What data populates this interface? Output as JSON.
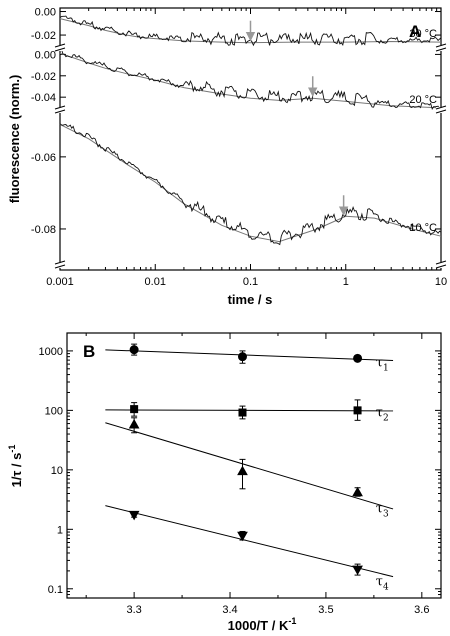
{
  "chart_data": [
    {
      "panel": "A",
      "type": "line",
      "xlabel": "time / s",
      "ylabel": "fluorescence (norm.)",
      "xscale": "log",
      "xlim": [
        0.001,
        10
      ],
      "x_ticks": [
        "0.001",
        "0.01",
        "0.1",
        "1",
        "10"
      ],
      "series": [
        {
          "name": "30 °C",
          "y_ticks": [
            "0.00",
            "-0.02"
          ],
          "ylim": [
            -0.031,
            0.003
          ],
          "points": [
            [
              0.001,
              -0.006
            ],
            [
              0.002,
              -0.012
            ],
            [
              0.003,
              -0.016
            ],
            [
              0.005,
              -0.02
            ],
            [
              0.007,
              -0.022
            ],
            [
              0.01,
              -0.023
            ],
            [
              0.02,
              -0.025
            ],
            [
              0.05,
              -0.026
            ],
            [
              0.1,
              -0.0265
            ],
            [
              0.3,
              -0.026
            ],
            [
              1,
              -0.026
            ],
            [
              3,
              -0.0255
            ],
            [
              10,
              -0.026
            ]
          ],
          "arrow_x": 0.1
        },
        {
          "name": "20 °C",
          "y_ticks": [
            "0.00",
            "-0.02",
            "-0.04"
          ],
          "ylim": [
            -0.052,
            0.006
          ],
          "points": [
            [
              0.001,
              0.001
            ],
            [
              0.002,
              -0.008
            ],
            [
              0.003,
              -0.013
            ],
            [
              0.005,
              -0.018
            ],
            [
              0.01,
              -0.024
            ],
            [
              0.02,
              -0.031
            ],
            [
              0.05,
              -0.037
            ],
            [
              0.1,
              -0.041
            ],
            [
              0.2,
              -0.043
            ],
            [
              0.45,
              -0.041
            ],
            [
              1,
              -0.044
            ],
            [
              3,
              -0.048
            ],
            [
              10,
              -0.05
            ]
          ],
          "arrow_x": 0.45
        },
        {
          "name": "10 °C",
          "y_ticks": [
            "-0.06",
            "-0.08"
          ],
          "ylim": [
            -0.09,
            -0.047
          ],
          "points": [
            [
              0.001,
              -0.051
            ],
            [
              0.002,
              -0.055
            ],
            [
              0.005,
              -0.062
            ],
            [
              0.01,
              -0.067
            ],
            [
              0.02,
              -0.073
            ],
            [
              0.05,
              -0.079
            ],
            [
              0.1,
              -0.082
            ],
            [
              0.2,
              -0.0835
            ],
            [
              0.5,
              -0.08
            ],
            [
              1,
              -0.0765
            ],
            [
              2,
              -0.077
            ],
            [
              5,
              -0.08
            ],
            [
              10,
              -0.082
            ]
          ],
          "arrow_x": 0.95
        }
      ],
      "labels": [
        "30 °C",
        "20 °C",
        "10 °C"
      ]
    },
    {
      "panel": "B",
      "type": "scatter",
      "xlabel": "1000/T / K⁻¹",
      "ylabel": "1/τ / s⁻¹",
      "yscale": "log",
      "xlim": [
        3.23,
        3.62
      ],
      "ylim": [
        0.07,
        2000
      ],
      "x_ticks": [
        "3.3",
        "3.4",
        "3.5",
        "3.6"
      ],
      "y_ticks": [
        "0.1",
        "1",
        "10",
        "100",
        "1000"
      ],
      "series": [
        {
          "name": "τ1",
          "marker": "circle",
          "x": [
            3.3,
            3.413,
            3.533
          ],
          "y": [
            1050,
            800,
            750
          ],
          "err_lo": [
            850,
            620,
            680
          ],
          "err_hi": [
            1300,
            1000,
            830
          ],
          "fit": [
            [
              3.27,
              1040
            ],
            [
              3.57,
              690
            ]
          ]
        },
        {
          "name": "τ2",
          "marker": "square",
          "x": [
            3.3,
            3.413,
            3.533
          ],
          "y": [
            105,
            92,
            100
          ],
          "err_lo": [
            80,
            72,
            68
          ],
          "err_hi": [
            135,
            118,
            150
          ],
          "fit": [
            [
              3.27,
              102
            ],
            [
              3.57,
              98
            ]
          ]
        },
        {
          "name": "τ3",
          "marker": "triangle-up",
          "x": [
            3.3,
            3.413,
            3.533
          ],
          "y": [
            58,
            9.5,
            4.2
          ],
          "err_lo": [
            42,
            4.8,
            3.6
          ],
          "err_hi": [
            75,
            15,
            5
          ],
          "fit": [
            [
              3.27,
              62
            ],
            [
              3.57,
              2.2
            ]
          ]
        },
        {
          "name": "τ4",
          "marker": "triangle-down",
          "x": [
            3.3,
            3.413,
            3.533
          ],
          "y": [
            1.75,
            0.78,
            0.21
          ],
          "err_lo": [
            1.6,
            0.66,
            0.17
          ],
          "err_hi": [
            1.9,
            0.92,
            0.26
          ],
          "fit": [
            [
              3.27,
              2.5
            ],
            [
              3.57,
              0.16
            ]
          ]
        }
      ],
      "tau_labels": [
        "τ1",
        "τ2",
        "τ3",
        "τ4"
      ]
    }
  ],
  "panel_labels": {
    "a": "A",
    "b": "B"
  },
  "titles": {
    "a_xlabel": "time / s",
    "a_ylabel": "fluorescence (norm.)",
    "b_xlabel": "1000/T / K",
    "b_xlabel_sup": "-1",
    "b_ylabel": "1/τ / s",
    "b_ylabel_sup": "-1"
  }
}
